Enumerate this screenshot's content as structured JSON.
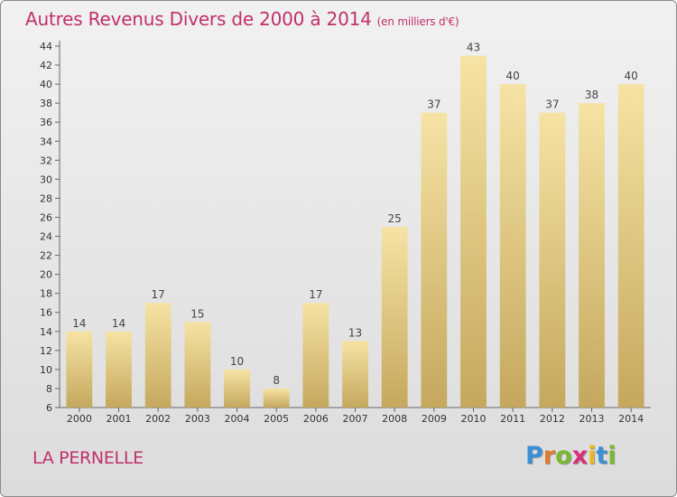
{
  "title": "Autres Revenus Divers de 2000 à 2014",
  "subtitle": "(en milliers d'€)",
  "location": "LA PERNELLE",
  "logo": {
    "letters": [
      "P",
      "r",
      "o",
      "x",
      "i",
      "t",
      "i"
    ],
    "colors": [
      "#3a8fd6",
      "#e07a2e",
      "#7ab833",
      "#d8307a",
      "#e8b820",
      "#3a8fd6",
      "#7ab833"
    ]
  },
  "colors": {
    "title": "#c0306a",
    "bar_light": "#f6e3a4",
    "bar_dark": "#c5a85e",
    "axis": "#666666"
  },
  "chart_data": {
    "type": "bar",
    "title": "Autres Revenus Divers de 2000 à 2014",
    "subtitle": "(en milliers d'€)",
    "categories": [
      "2000",
      "2001",
      "2002",
      "2003",
      "2004",
      "2005",
      "2006",
      "2007",
      "2008",
      "2009",
      "2010",
      "2011",
      "2012",
      "2013",
      "2014"
    ],
    "values": [
      14,
      14,
      17,
      15,
      10,
      8,
      17,
      13,
      25,
      37,
      43,
      40,
      37,
      38,
      40
    ],
    "ylim": [
      6,
      44
    ],
    "yticks": [
      6,
      8,
      10,
      12,
      14,
      16,
      18,
      20,
      22,
      24,
      26,
      28,
      30,
      32,
      34,
      36,
      38,
      40,
      42,
      44
    ],
    "grid": false,
    "data_labels": true
  }
}
